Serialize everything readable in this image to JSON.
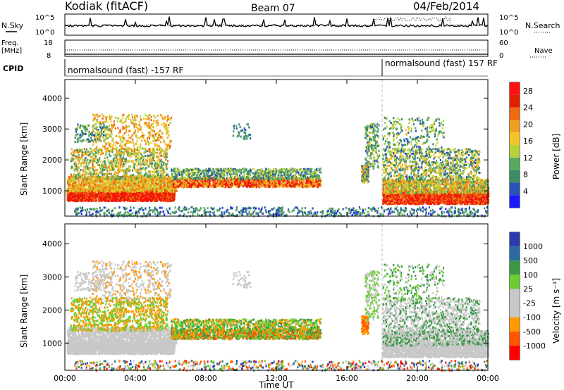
{
  "header": {
    "title": "Kodiak (fitACF)",
    "beam": "Beam 07",
    "date": "04/Feb/2014"
  },
  "noise_panel": {
    "left_label": "N.Sky",
    "right_label": "N.Search",
    "ticks_left": [
      "10^5",
      "10^0"
    ],
    "ticks_right": [
      "10^5",
      "10^0"
    ]
  },
  "freq_panel": {
    "left_label_1": "Freq.",
    "left_label_2": "[MHz]",
    "ticks_left": [
      "18",
      "8"
    ],
    "right_label": "Nave",
    "ticks_right": [
      "60",
      "0"
    ]
  },
  "cpid": {
    "label": "CPID",
    "segments": [
      {
        "text": "normalsound (fast) -157 RF",
        "start_hour": 0
      },
      {
        "text": "normalsound (fast) 157 RF",
        "start_hour": 18
      }
    ]
  },
  "colors": {
    "power_scale": [
      "#1a1aff",
      "#2a52b8",
      "#3a8c68",
      "#5aa860",
      "#b6d23a",
      "#f0c628",
      "#f0a020",
      "#f06a10",
      "#e02000",
      "#ff1010"
    ],
    "velocity_scale": [
      "#ff0000",
      "#ff5500",
      "#ff9a00",
      "#c8c8c8",
      "#c8c8c8",
      "#6ccc32",
      "#3a9a44",
      "#2a6aa0",
      "#2a3ab0"
    ]
  },
  "chart_data": [
    {
      "type": "heatmap",
      "name": "power",
      "xlabel": "Time UT",
      "ylabel": "Slant Range [km]",
      "xlim_hours": [
        0,
        24
      ],
      "ylim": [
        180,
        4600
      ],
      "x_ticks": [
        "00:00",
        "04:00",
        "08:00",
        "12:00",
        "16:00",
        "20:00",
        "00:00"
      ],
      "y_ticks": [
        1000,
        2000,
        3000,
        4000
      ],
      "colorbar_label": "Power [dB]",
      "colorbar_ticks": [
        4,
        8,
        12,
        16,
        20,
        24,
        28
      ],
      "colorbar_range": [
        0,
        30
      ]
    },
    {
      "type": "heatmap",
      "name": "velocity",
      "xlabel": "Time UT",
      "ylabel": "Slant Range [km]",
      "xlim_hours": [
        0,
        24
      ],
      "ylim": [
        180,
        4600
      ],
      "x_ticks": [
        "00:00",
        "04:00",
        "08:00",
        "12:00",
        "16:00",
        "20:00",
        "00:00"
      ],
      "y_ticks": [
        1000,
        2000,
        3000,
        4000
      ],
      "colorbar_label": "Velocity [m s⁻¹]",
      "colorbar_ticks": [
        "1000",
        "500",
        "100",
        "25",
        "-25",
        "-100",
        "-500",
        "-1000"
      ]
    }
  ]
}
